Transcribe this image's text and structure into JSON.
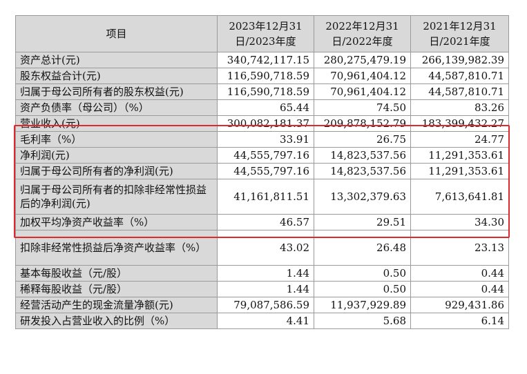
{
  "table": {
    "headers": [
      "项目",
      "2023年12月31日/2023年度",
      "2022年12月31日/2022年度",
      "2021年12月31日/2021年度"
    ],
    "rows": [
      {
        "label": "资产总计(元)",
        "v2023": "340,742,117.15",
        "v2022": "280,275,479.19",
        "v2021": "266,139,982.39"
      },
      {
        "label": "股东权益合计(元)",
        "v2023": "116,590,718.59",
        "v2022": "70,961,404.12",
        "v2021": "44,587,810.71"
      },
      {
        "label": "归属于母公司所有者的股东权益(元)",
        "v2023": "116,590,718.59",
        "v2022": "70,961,404.12",
        "v2021": "44,587,810.71"
      },
      {
        "label": "资产负债率（母公司）（%）",
        "v2023": "65.44",
        "v2022": "74.50",
        "v2021": "83.26"
      },
      {
        "label": "营业收入(元)",
        "v2023": "300,082,181.37",
        "v2022": "209,878,152.79",
        "v2021": "183,399,432.27"
      },
      {
        "label": "毛利率（%）",
        "v2023": "33.91",
        "v2022": "26.75",
        "v2021": "24.77"
      },
      {
        "label": "净利润(元)",
        "v2023": "44,555,797.16",
        "v2022": "14,823,537.56",
        "v2021": "11,291,353.61"
      },
      {
        "label": "归属于母公司所有者的净利润(元)",
        "v2023": "44,555,797.16",
        "v2022": "14,823,537.56",
        "v2021": "11,291,353.61"
      },
      {
        "label": "归属于母公司所有者的扣除非经常性损益后的净利润(元)",
        "v2023": "41,161,811.51",
        "v2022": "13,302,379.63",
        "v2021": "7,613,641.81"
      },
      {
        "label": "加权平均净资产收益率（%）",
        "v2023": "46.57",
        "v2022": "29.51",
        "v2021": "34.30"
      },
      {
        "label": "扣除非经常性损益后净资产收益率（%）",
        "v2023": "43.02",
        "v2022": "26.48",
        "v2021": "23.13"
      },
      {
        "label": "基本每股收益（元/股）",
        "v2023": "1.44",
        "v2022": "0.50",
        "v2021": "0.44"
      },
      {
        "label": "稀释每股收益（元/股）",
        "v2023": "1.44",
        "v2022": "0.50",
        "v2021": "0.44"
      },
      {
        "label": "经营活动产生的现金流量净额(元)",
        "v2023": "79,087,586.59",
        "v2022": "11,937,929.89",
        "v2021": "929,431.86"
      },
      {
        "label": "研发投入占营业收入的比例（%）",
        "v2023": "4.41",
        "v2022": "5.68",
        "v2021": "6.14"
      }
    ]
  },
  "colors": {
    "header_bg": "#d9d9d9",
    "border": "#9a9a9a",
    "highlight_border": "#e0282e"
  }
}
